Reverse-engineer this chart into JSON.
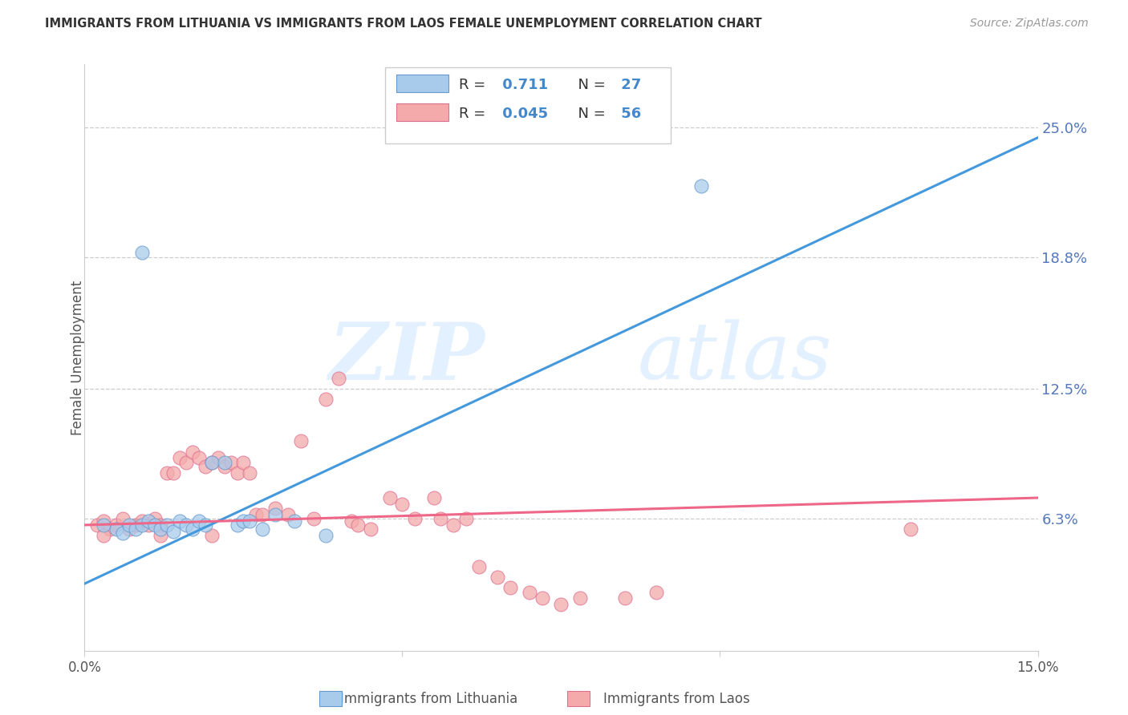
{
  "title": "IMMIGRANTS FROM LITHUANIA VS IMMIGRANTS FROM LAOS FEMALE UNEMPLOYMENT CORRELATION CHART",
  "source": "Source: ZipAtlas.com",
  "ylabel_text": "Female Unemployment",
  "xlim": [
    0.0,
    0.15
  ],
  "ylim": [
    0.0,
    0.28
  ],
  "yticks": [
    0.063,
    0.125,
    0.188,
    0.25
  ],
  "ytick_labels": [
    "6.3%",
    "12.5%",
    "18.8%",
    "25.0%"
  ],
  "xticks": [
    0.0,
    0.05,
    0.1,
    0.15
  ],
  "xtick_labels": [
    "0.0%",
    "",
    "",
    "15.0%"
  ],
  "watermark_zip": "ZIP",
  "watermark_atlas": "atlas",
  "legend_R1": "0.711",
  "legend_N1": "27",
  "legend_R2": "0.045",
  "legend_N2": "56",
  "color_blue_fill": "#A8CBEC",
  "color_blue_edge": "#6699CC",
  "color_pink_fill": "#F4AAAA",
  "color_pink_edge": "#E07090",
  "color_line_blue": "#4499DD",
  "color_line_pink": "#EE6688",
  "color_title": "#333333",
  "color_ytick": "#5577BB",
  "color_grid": "#CCCCCC",
  "legend_text_color": "#333333",
  "legend_RN_color": "#4488CC",
  "bottom_legend_color": "#555555",
  "blue_line_x": [
    0.0,
    0.15
  ],
  "blue_line_y": [
    0.032,
    0.245
  ],
  "pink_line_x": [
    0.0,
    0.15
  ],
  "pink_line_y": [
    0.06,
    0.073
  ],
  "blue_scatter": [
    [
      0.003,
      0.06
    ],
    [
      0.005,
      0.058
    ],
    [
      0.006,
      0.056
    ],
    [
      0.007,
      0.06
    ],
    [
      0.008,
      0.058
    ],
    [
      0.009,
      0.06
    ],
    [
      0.01,
      0.062
    ],
    [
      0.011,
      0.06
    ],
    [
      0.012,
      0.058
    ],
    [
      0.013,
      0.06
    ],
    [
      0.014,
      0.057
    ],
    [
      0.015,
      0.062
    ],
    [
      0.016,
      0.06
    ],
    [
      0.017,
      0.058
    ],
    [
      0.018,
      0.062
    ],
    [
      0.019,
      0.06
    ],
    [
      0.02,
      0.09
    ],
    [
      0.022,
      0.09
    ],
    [
      0.024,
      0.06
    ],
    [
      0.025,
      0.062
    ],
    [
      0.026,
      0.062
    ],
    [
      0.028,
      0.058
    ],
    [
      0.03,
      0.065
    ],
    [
      0.033,
      0.062
    ],
    [
      0.009,
      0.19
    ],
    [
      0.097,
      0.222
    ],
    [
      0.038,
      0.055
    ]
  ],
  "pink_scatter": [
    [
      0.002,
      0.06
    ],
    [
      0.003,
      0.062
    ],
    [
      0.004,
      0.058
    ],
    [
      0.005,
      0.06
    ],
    [
      0.006,
      0.063
    ],
    [
      0.007,
      0.058
    ],
    [
      0.008,
      0.06
    ],
    [
      0.009,
      0.062
    ],
    [
      0.01,
      0.06
    ],
    [
      0.011,
      0.063
    ],
    [
      0.012,
      0.06
    ],
    [
      0.013,
      0.085
    ],
    [
      0.014,
      0.085
    ],
    [
      0.015,
      0.092
    ],
    [
      0.016,
      0.09
    ],
    [
      0.017,
      0.095
    ],
    [
      0.018,
      0.092
    ],
    [
      0.019,
      0.088
    ],
    [
      0.02,
      0.09
    ],
    [
      0.021,
      0.092
    ],
    [
      0.022,
      0.088
    ],
    [
      0.023,
      0.09
    ],
    [
      0.024,
      0.085
    ],
    [
      0.025,
      0.09
    ],
    [
      0.026,
      0.085
    ],
    [
      0.027,
      0.065
    ],
    [
      0.028,
      0.065
    ],
    [
      0.03,
      0.068
    ],
    [
      0.032,
      0.065
    ],
    [
      0.034,
      0.1
    ],
    [
      0.036,
      0.063
    ],
    [
      0.038,
      0.12
    ],
    [
      0.04,
      0.13
    ],
    [
      0.042,
      0.062
    ],
    [
      0.043,
      0.06
    ],
    [
      0.045,
      0.058
    ],
    [
      0.048,
      0.073
    ],
    [
      0.05,
      0.07
    ],
    [
      0.052,
      0.063
    ],
    [
      0.055,
      0.073
    ],
    [
      0.056,
      0.063
    ],
    [
      0.058,
      0.06
    ],
    [
      0.06,
      0.063
    ],
    [
      0.062,
      0.04
    ],
    [
      0.065,
      0.035
    ],
    [
      0.067,
      0.03
    ],
    [
      0.07,
      0.028
    ],
    [
      0.072,
      0.025
    ],
    [
      0.075,
      0.022
    ],
    [
      0.078,
      0.025
    ],
    [
      0.085,
      0.025
    ],
    [
      0.09,
      0.028
    ],
    [
      0.13,
      0.058
    ],
    [
      0.003,
      0.055
    ],
    [
      0.012,
      0.055
    ],
    [
      0.02,
      0.055
    ]
  ]
}
